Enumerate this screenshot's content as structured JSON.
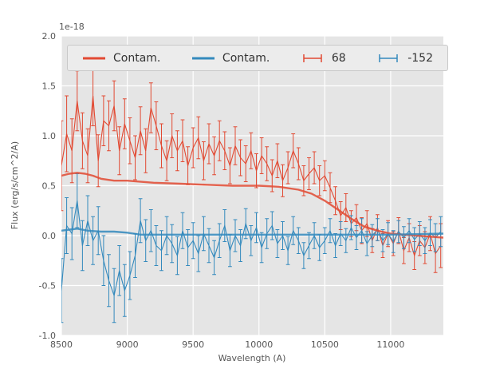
{
  "figure": {
    "offset_text": "1e-18",
    "xlabel": "Wavelength (A)",
    "ylabel": "Flux (erg/s/cm^2/A)",
    "x_tick_labels": [
      "8500",
      "9000",
      "9500",
      "10000",
      "10500",
      "11000"
    ],
    "y_tick_labels": [
      "-1.0",
      "-0.5",
      "0.0",
      "0.5",
      "1.0",
      "1.5",
      "2.0"
    ],
    "plot_bg_color": "#e5e5e5",
    "grid_color": "#ffffff",
    "tick_text_color": "#555555"
  },
  "legend": {
    "entries": [
      {
        "label": "Contam.",
        "color": "#E24A33",
        "type": "line"
      },
      {
        "label": "Contam.",
        "color": "#348ABD",
        "type": "line"
      },
      {
        "label": "68",
        "color": "#E24A33",
        "type": "errorbar"
      },
      {
        "label": "-152",
        "color": "#348ABD",
        "type": "errorbar"
      }
    ]
  },
  "chart_data": {
    "type": "line",
    "title": "",
    "xlabel": "Wavelength (A)",
    "ylabel": "Flux (erg/s/cm^2/A)",
    "y_unit_multiplier": "1e-18",
    "xlim": [
      8500,
      11400
    ],
    "ylim": [
      -1.0,
      2.0
    ],
    "grid": true,
    "legend_position": "upper center",
    "series": [
      {
        "name": "Contam.",
        "kind": "line",
        "color": "#E24A33",
        "x": [
          8500,
          8560,
          8620,
          8680,
          8740,
          8800,
          8900,
          9000,
          9200,
          9400,
          9600,
          9800,
          10000,
          10150,
          10300,
          10400,
          10500,
          10600,
          10700,
          10800,
          10900,
          11000,
          11100,
          11200,
          11300,
          11400
        ],
        "y": [
          0.6,
          0.62,
          0.63,
          0.62,
          0.6,
          0.57,
          0.55,
          0.55,
          0.53,
          0.52,
          0.51,
          0.5,
          0.5,
          0.49,
          0.46,
          0.42,
          0.35,
          0.26,
          0.17,
          0.09,
          0.05,
          0.02,
          0.01,
          0.0,
          -0.01,
          -0.02
        ]
      },
      {
        "name": "Contam.",
        "kind": "line",
        "color": "#348ABD",
        "x": [
          8500,
          8560,
          8620,
          8700,
          8800,
          8900,
          9000,
          9050,
          9100,
          9300,
          9600,
          10000,
          10500,
          11000,
          11400
        ],
        "y": [
          0.05,
          0.06,
          0.07,
          0.05,
          0.04,
          0.04,
          0.03,
          0.02,
          0.01,
          0.01,
          0.01,
          0.01,
          0.01,
          0.01,
          0.02
        ]
      },
      {
        "name": "68",
        "kind": "errorbar",
        "color": "#E24A33",
        "x_start": 8500,
        "x_step": 40,
        "y": [
          0.7,
          1.02,
          0.85,
          1.35,
          0.95,
          0.8,
          1.4,
          0.75,
          1.15,
          1.1,
          1.3,
          0.85,
          1.12,
          0.95,
          0.78,
          1.05,
          0.85,
          1.28,
          1.1,
          0.9,
          0.75,
          1.0,
          0.85,
          0.95,
          0.7,
          0.88,
          0.98,
          0.75,
          0.92,
          0.8,
          0.95,
          0.85,
          0.7,
          0.9,
          0.78,
          0.72,
          0.85,
          0.65,
          0.8,
          0.72,
          0.6,
          0.75,
          0.55,
          0.68,
          0.85,
          0.72,
          0.55,
          0.62,
          0.68,
          0.55,
          0.6,
          0.48,
          0.35,
          0.2,
          0.28,
          0.12,
          0.18,
          0.05,
          0.12,
          -0.05,
          0.08,
          -0.1,
          0.02,
          -0.08,
          0.05,
          -0.15,
          -0.02,
          -0.2,
          -0.05,
          -0.12,
          0.02,
          -0.18,
          -0.1
        ],
        "yerr": [
          0.45,
          0.38,
          0.32,
          0.3,
          0.28,
          0.27,
          0.3,
          0.26,
          0.25,
          0.25,
          0.25,
          0.24,
          0.25,
          0.23,
          0.22,
          0.24,
          0.22,
          0.25,
          0.24,
          0.22,
          0.2,
          0.22,
          0.2,
          0.21,
          0.19,
          0.2,
          0.21,
          0.19,
          0.2,
          0.19,
          0.2,
          0.19,
          0.18,
          0.19,
          0.18,
          0.18,
          0.18,
          0.17,
          0.18,
          0.17,
          0.16,
          0.17,
          0.16,
          0.16,
          0.17,
          0.16,
          0.15,
          0.16,
          0.16,
          0.15,
          0.15,
          0.15,
          0.14,
          0.14,
          0.14,
          0.13,
          0.13,
          0.13,
          0.13,
          0.12,
          0.13,
          0.12,
          0.13,
          0.12,
          0.13,
          0.13,
          0.14,
          0.14,
          0.15,
          0.16,
          0.17,
          0.19,
          0.22
        ]
      },
      {
        "name": "-152",
        "kind": "errorbar",
        "color": "#348ABD",
        "x_start": 8500,
        "x_step": 40,
        "y": [
          -0.55,
          0.1,
          0.02,
          0.35,
          -0.1,
          0.15,
          -0.05,
          0.05,
          -0.25,
          -0.45,
          -0.6,
          -0.35,
          -0.55,
          -0.4,
          -0.2,
          0.15,
          -0.05,
          0.05,
          -0.1,
          -0.15,
          0.0,
          -0.08,
          -0.2,
          0.05,
          -0.12,
          -0.05,
          -0.18,
          0.02,
          -0.1,
          -0.22,
          -0.05,
          0.1,
          -0.15,
          0.0,
          -0.1,
          0.12,
          -0.05,
          0.08,
          -0.12,
          0.02,
          0.1,
          -0.08,
          0.0,
          -0.15,
          0.05,
          -0.05,
          -0.2,
          -0.1,
          0.0,
          -0.12,
          -0.05,
          0.05,
          -0.1,
          0.02,
          -0.05,
          0.08,
          -0.02,
          0.05,
          -0.08,
          0.0,
          0.06,
          -0.05,
          0.02,
          -0.06,
          0.04,
          -0.02,
          0.05,
          -0.04,
          0.02,
          -0.05,
          0.03,
          -0.02,
          0.04
        ],
        "yerr": [
          0.32,
          0.28,
          0.26,
          0.27,
          0.25,
          0.25,
          0.24,
          0.24,
          0.25,
          0.26,
          0.27,
          0.25,
          0.26,
          0.24,
          0.22,
          0.22,
          0.21,
          0.21,
          0.2,
          0.2,
          0.19,
          0.19,
          0.19,
          0.18,
          0.18,
          0.18,
          0.18,
          0.17,
          0.17,
          0.17,
          0.17,
          0.16,
          0.16,
          0.16,
          0.16,
          0.15,
          0.15,
          0.15,
          0.15,
          0.15,
          0.14,
          0.14,
          0.14,
          0.14,
          0.14,
          0.13,
          0.13,
          0.13,
          0.13,
          0.13,
          0.13,
          0.12,
          0.12,
          0.12,
          0.12,
          0.12,
          0.12,
          0.12,
          0.12,
          0.11,
          0.11,
          0.11,
          0.11,
          0.11,
          0.11,
          0.11,
          0.12,
          0.12,
          0.12,
          0.13,
          0.13,
          0.14,
          0.15
        ]
      }
    ]
  }
}
